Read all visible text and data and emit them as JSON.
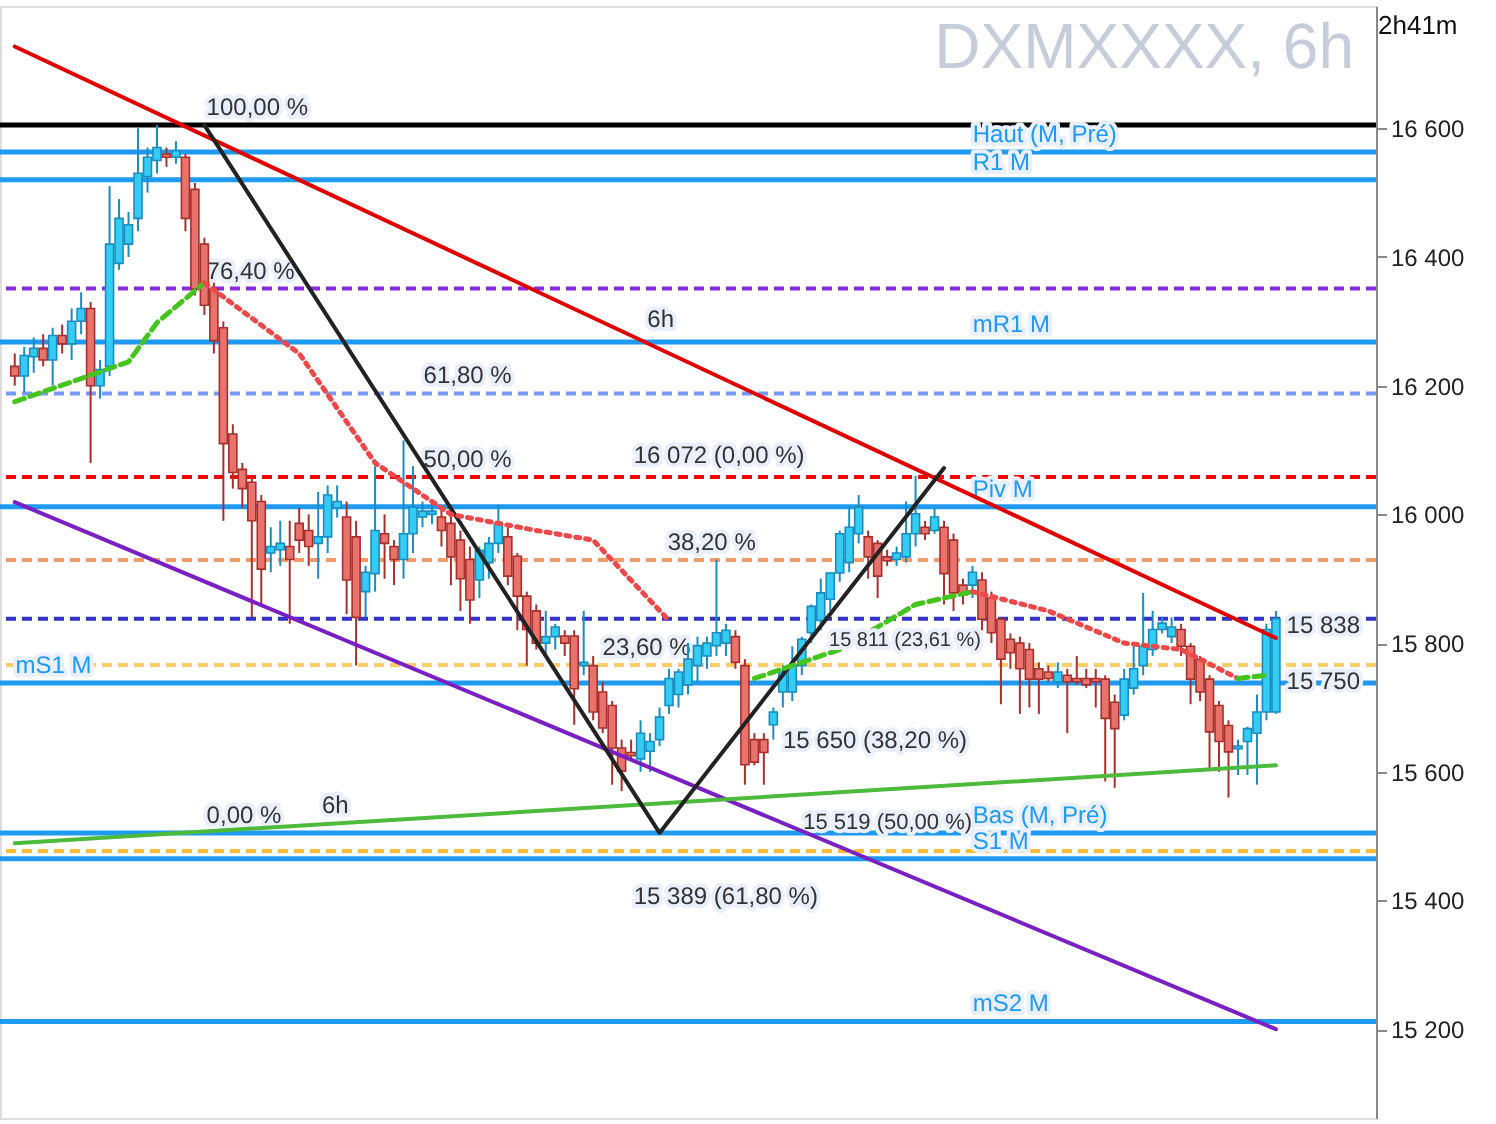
{
  "chart_data": {
    "type": "candlestick",
    "title": "DXMXXXX, 6h",
    "categories": [
      null,
      null,
      null,
      null,
      null,
      null,
      null,
      null,
      null,
      null,
      null,
      null,
      null,
      null,
      null,
      null,
      null,
      null,
      null,
      null,
      null,
      null,
      null,
      null,
      null,
      null,
      null,
      null,
      null,
      null,
      null,
      null,
      null,
      null,
      null,
      null,
      null,
      null,
      null,
      null,
      null,
      null,
      null,
      null,
      null,
      null,
      null,
      null,
      null,
      null,
      null,
      null,
      null,
      null,
      null,
      null,
      null,
      null,
      null,
      null,
      null,
      null,
      null,
      null,
      null,
      null,
      null,
      null,
      null,
      null,
      null,
      null,
      null,
      null,
      null,
      null,
      null,
      null,
      null,
      null,
      null,
      null,
      null,
      null,
      null,
      null,
      null,
      null,
      null,
      null,
      null,
      null,
      null,
      null,
      null,
      null,
      null,
      null,
      null,
      null,
      null,
      null,
      null,
      null,
      null,
      null,
      null,
      null,
      null,
      null,
      null,
      null,
      null,
      null,
      null,
      null,
      null,
      null,
      null,
      null,
      null,
      null,
      null,
      null,
      null,
      null,
      null,
      null,
      null,
      null,
      null,
      null,
      null,
      null
    ],
    "ohlc": [
      [
        16230,
        16250,
        16200,
        16215
      ],
      [
        16215,
        16260,
        16190,
        16247
      ],
      [
        16245,
        16275,
        16220,
        16258
      ],
      [
        16258,
        16280,
        16230,
        16240
      ],
      [
        16240,
        16290,
        16200,
        16278
      ],
      [
        16278,
        16295,
        16250,
        16265
      ],
      [
        16265,
        16320,
        16240,
        16300
      ],
      [
        16300,
        16345,
        16280,
        16320
      ],
      [
        16320,
        16330,
        16080,
        16200
      ],
      [
        16200,
        16240,
        16180,
        16225
      ],
      [
        16230,
        16510,
        16215,
        16420
      ],
      [
        16390,
        16490,
        16380,
        16460
      ],
      [
        16420,
        16470,
        16400,
        16450
      ],
      [
        16460,
        16600,
        16440,
        16530
      ],
      [
        16525,
        16570,
        16500,
        16555
      ],
      [
        16550,
        16605,
        16530,
        16570
      ],
      [
        16560,
        16570,
        16540,
        16555
      ],
      [
        16555,
        16580,
        16545,
        16565
      ],
      [
        16555,
        16560,
        16440,
        16460
      ],
      [
        16505,
        16515,
        16340,
        16350
      ],
      [
        16420,
        16430,
        16310,
        16325
      ],
      [
        16350,
        16360,
        16250,
        16270
      ],
      [
        16290,
        16300,
        15990,
        16110
      ],
      [
        16125,
        16140,
        16040,
        16065
      ],
      [
        16070,
        16080,
        16010,
        16040
      ],
      [
        16050,
        16060,
        15840,
        15990
      ],
      [
        16020,
        16030,
        15860,
        15915
      ],
      [
        15940,
        15980,
        15910,
        15950
      ],
      [
        15945,
        15990,
        15920,
        15955
      ],
      [
        15950,
        15990,
        15830,
        15930
      ],
      [
        15986,
        16010,
        15940,
        15960
      ],
      [
        15975,
        16000,
        15920,
        15950
      ],
      [
        15955,
        16035,
        15900,
        15965
      ],
      [
        15965,
        16045,
        15940,
        16030
      ],
      [
        16010,
        16045,
        15995,
        16020
      ],
      [
        15996,
        16020,
        15845,
        15898
      ],
      [
        15965,
        15990,
        15765,
        15840
      ],
      [
        15880,
        15920,
        15840,
        15910
      ],
      [
        15908,
        16075,
        15880,
        15975
      ],
      [
        15970,
        16000,
        15900,
        15955
      ],
      [
        15950,
        15960,
        15890,
        15930
      ],
      [
        15930,
        16115,
        15900,
        15970
      ],
      [
        15970,
        16075,
        15940,
        16011
      ],
      [
        15996,
        16020,
        15980,
        16005
      ],
      [
        16000,
        16020,
        15985,
        16005
      ],
      [
        15996,
        16010,
        15950,
        15975
      ],
      [
        15986,
        16000,
        15890,
        15934
      ],
      [
        15960,
        15975,
        15850,
        15900
      ],
      [
        15930,
        15950,
        15830,
        15867
      ],
      [
        15898,
        15950,
        15870,
        15944
      ],
      [
        15925,
        15965,
        15900,
        15955
      ],
      [
        15955,
        16015,
        15940,
        15986
      ],
      [
        15965,
        15980,
        15890,
        15904
      ],
      [
        15935,
        15940,
        15820,
        15873
      ],
      [
        15873,
        15880,
        15765,
        15821
      ],
      [
        15850,
        15860,
        15790,
        15800
      ],
      [
        15800,
        15850,
        15780,
        15810
      ],
      [
        15810,
        15830,
        15790,
        15825
      ],
      [
        15811,
        15820,
        15780,
        15800
      ],
      [
        15811,
        15820,
        15673,
        15729
      ],
      [
        15765,
        15850,
        15750,
        15770
      ],
      [
        15765,
        15780,
        15680,
        15693
      ],
      [
        15724,
        15740,
        15660,
        15668
      ],
      [
        15703,
        15710,
        15580,
        15637
      ],
      [
        15637,
        15650,
        15570,
        15601
      ],
      [
        15630,
        15650,
        15620,
        15625
      ],
      [
        15620,
        15680,
        15600,
        15660
      ],
      [
        15632,
        15660,
        15600,
        15647
      ],
      [
        15650,
        15700,
        15640,
        15685
      ],
      [
        15703,
        15760,
        15690,
        15745
      ],
      [
        15720,
        15760,
        15700,
        15755
      ],
      [
        15735,
        15800,
        15720,
        15775
      ],
      [
        15765,
        15810,
        15740,
        15796
      ],
      [
        15780,
        15810,
        15760,
        15800
      ],
      [
        15796,
        15930,
        15780,
        15816
      ],
      [
        15800,
        15830,
        15780,
        15820
      ],
      [
        15810,
        15820,
        15760,
        15770
      ],
      [
        15765,
        15775,
        15580,
        15611
      ],
      [
        15650,
        15660,
        15610,
        15615
      ],
      [
        15650,
        15660,
        15580,
        15630
      ],
      [
        15673,
        15700,
        15650,
        15693
      ],
      [
        15724,
        15765,
        15700,
        15755
      ],
      [
        15724,
        15795,
        15710,
        15765
      ],
      [
        15765,
        15810,
        15750,
        15806
      ],
      [
        15816,
        15860,
        15800,
        15857
      ],
      [
        15835,
        15900,
        15820,
        15878
      ],
      [
        15868,
        15910,
        15850,
        15909
      ],
      [
        15909,
        15975,
        15895,
        15970
      ],
      [
        15925,
        16011,
        15910,
        15980
      ],
      [
        15970,
        16030,
        15955,
        16011
      ],
      [
        15965,
        15975,
        15900,
        15934
      ],
      [
        15955,
        15960,
        15870,
        15904
      ],
      [
        15934,
        15945,
        15920,
        15928
      ],
      [
        15930,
        15950,
        15920,
        15940
      ],
      [
        15934,
        16020,
        15925,
        15970
      ],
      [
        15970,
        16060,
        15950,
        16001
      ],
      [
        15980,
        15990,
        15960,
        15970
      ],
      [
        15975,
        16010,
        15970,
        15996
      ],
      [
        15980,
        15990,
        15860,
        15908
      ],
      [
        15960,
        15970,
        15850,
        15878
      ],
      [
        15890,
        15900,
        15860,
        15875
      ],
      [
        15890,
        15920,
        15870,
        15910
      ],
      [
        15898,
        15910,
        15820,
        15837
      ],
      [
        15870,
        15880,
        15800,
        15816
      ],
      [
        15837,
        15840,
        15705,
        15775
      ],
      [
        15806,
        15815,
        15760,
        15785
      ],
      [
        15800,
        15810,
        15690,
        15760
      ],
      [
        15790,
        15800,
        15700,
        15744
      ],
      [
        15760,
        15770,
        15690,
        15744
      ],
      [
        15755,
        15765,
        15740,
        15745
      ],
      [
        15740,
        15770,
        15730,
        15755
      ],
      [
        15750,
        15760,
        15660,
        15740
      ],
      [
        15745,
        15780,
        15735,
        15740
      ],
      [
        15745,
        15760,
        15730,
        15735
      ],
      [
        15745,
        15760,
        15700,
        15740
      ],
      [
        15744,
        15750,
        15585,
        15683
      ],
      [
        15708,
        15720,
        15575,
        15667
      ],
      [
        15688,
        15760,
        15680,
        15744
      ],
      [
        15730,
        15800,
        15720,
        15760
      ],
      [
        15765,
        15878,
        15750,
        15795
      ],
      [
        15790,
        15850,
        15780,
        15821
      ],
      [
        15821,
        15840,
        15815,
        15831
      ],
      [
        15810,
        15840,
        15800,
        15825
      ],
      [
        15821,
        15830,
        15780,
        15795
      ],
      [
        15795,
        15800,
        15705,
        15744
      ],
      [
        15775,
        15780,
        15710,
        15724
      ],
      [
        15744,
        15750,
        15605,
        15662
      ],
      [
        15703,
        15710,
        15600,
        15647
      ],
      [
        15672,
        15680,
        15560,
        15631
      ],
      [
        15636,
        15650,
        15595,
        15640
      ],
      [
        15647,
        15670,
        15595,
        15667
      ],
      [
        15660,
        15720,
        15580,
        15693
      ],
      [
        15693,
        15830,
        15680,
        15821
      ],
      [
        15693,
        15850,
        15690,
        15838
      ]
    ],
    "series": [
      {
        "type": "line",
        "color": "#e00000",
        "line_style": "solid",
        "values": [
          16727,
          null,
          null,
          null,
          null,
          null,
          null,
          null,
          null,
          null,
          null,
          null,
          null,
          null,
          null,
          null,
          null,
          null,
          null,
          null,
          null,
          null,
          null,
          null,
          null,
          null,
          null,
          null,
          null,
          null,
          null,
          null,
          null,
          null,
          null,
          null,
          null,
          null,
          null,
          null,
          null,
          null,
          null,
          null,
          null,
          null,
          null,
          null,
          null,
          null,
          null,
          null,
          null,
          null,
          null,
          null,
          null,
          null,
          null,
          null,
          null,
          null,
          null,
          null,
          null,
          null,
          null,
          null,
          null,
          null,
          null,
          null,
          null,
          null,
          null,
          null,
          null,
          null,
          null,
          null,
          null,
          null,
          null,
          null,
          null,
          null,
          null,
          null,
          null,
          null,
          null,
          null,
          null,
          null,
          null,
          null,
          null,
          null,
          null,
          null,
          null,
          null,
          null,
          null,
          null,
          null,
          null,
          null,
          null,
          null,
          null,
          null,
          null,
          null,
          null,
          null,
          null,
          null,
          null,
          null,
          null,
          null,
          null,
          null,
          null,
          null,
          null,
          null,
          null,
          null,
          null,
          null,
          null,
          15808
        ]
      },
      {
        "type": "line",
        "color": "#7a1fc2",
        "line_style": "solid",
        "values": [
          16019,
          null,
          null,
          null,
          null,
          null,
          null,
          null,
          null,
          null,
          null,
          null,
          null,
          null,
          null,
          null,
          null,
          null,
          null,
          null,
          null,
          null,
          null,
          null,
          null,
          null,
          null,
          null,
          null,
          null,
          null,
          null,
          null,
          null,
          null,
          null,
          null,
          null,
          null,
          null,
          null,
          null,
          null,
          null,
          null,
          null,
          null,
          null,
          null,
          null,
          null,
          null,
          null,
          null,
          null,
          null,
          null,
          null,
          null,
          null,
          null,
          null,
          null,
          null,
          null,
          null,
          null,
          null,
          null,
          null,
          null,
          null,
          null,
          null,
          null,
          null,
          null,
          null,
          null,
          null,
          null,
          null,
          null,
          null,
          null,
          null,
          null,
          null,
          null,
          null,
          null,
          null,
          null,
          null,
          null,
          null,
          null,
          null,
          null,
          null,
          null,
          null,
          null,
          null,
          null,
          null,
          null,
          null,
          null,
          null,
          null,
          null,
          null,
          null,
          null,
          null,
          null,
          null,
          null,
          null,
          null,
          null,
          null,
          null,
          null,
          null,
          null,
          null,
          null,
          null,
          null,
          null,
          null,
          15200
        ]
      },
      {
        "type": "line",
        "color": "#4cbb3c",
        "line_style": "solid",
        "values": [
          15489,
          null,
          null,
          null,
          null,
          null,
          null,
          null,
          null,
          null,
          null,
          null,
          null,
          null,
          null,
          null,
          null,
          null,
          null,
          null,
          null,
          null,
          null,
          null,
          null,
          null,
          null,
          null,
          null,
          null,
          null,
          null,
          null,
          null,
          null,
          null,
          null,
          null,
          null,
          null,
          null,
          null,
          null,
          null,
          null,
          null,
          null,
          null,
          null,
          null,
          null,
          null,
          null,
          null,
          null,
          null,
          null,
          null,
          null,
          null,
          null,
          null,
          null,
          null,
          null,
          null,
          null,
          null,
          null,
          null,
          null,
          null,
          null,
          null,
          null,
          null,
          null,
          null,
          null,
          null,
          null,
          null,
          null,
          null,
          null,
          null,
          null,
          null,
          null,
          null,
          null,
          null,
          null,
          null,
          null,
          null,
          null,
          null,
          null,
          null,
          null,
          null,
          null,
          null,
          null,
          null,
          null,
          null,
          null,
          null,
          null,
          null,
          null,
          null,
          null,
          null,
          null,
          null,
          null,
          null,
          null,
          null,
          null,
          null,
          null,
          null,
          null,
          null,
          null,
          null,
          null,
          null,
          null,
          15610
        ]
      },
      {
        "type": "line",
        "color": "#222222",
        "line_style": "solid",
        "values": [
          null,
          null,
          null,
          null,
          null,
          null,
          null,
          null,
          null,
          null,
          null,
          null,
          null,
          null,
          null,
          null,
          null,
          null,
          null,
          null,
          16605,
          null,
          null,
          null,
          null,
          null,
          null,
          null,
          null,
          null,
          null,
          null,
          null,
          null,
          null,
          null,
          null,
          null,
          null,
          null,
          null,
          null,
          null,
          null,
          null,
          null,
          null,
          null,
          null,
          null,
          null,
          null,
          null,
          null,
          null,
          null,
          null,
          null,
          null,
          null,
          null,
          null,
          null,
          null,
          null,
          null,
          null,
          null,
          15505,
          null,
          null,
          null,
          null,
          null,
          null,
          null,
          null,
          null,
          null,
          null,
          null,
          null,
          null,
          null,
          null,
          null,
          null,
          null,
          null,
          null,
          null,
          null,
          null,
          null,
          null,
          null,
          null,
          null,
          16072,
          null,
          null,
          null,
          null,
          null,
          null,
          null,
          null,
          null,
          null,
          null,
          null,
          null,
          null,
          null,
          null,
          null,
          null,
          null,
          null,
          null,
          null,
          null,
          null,
          null,
          null,
          null,
          null,
          null,
          null,
          null,
          null,
          null,
          null,
          null
        ]
      },
      {
        "type": "line",
        "color": "#44c41c",
        "line_style": "dashed",
        "values": [
          16175,
          null,
          null,
          null,
          null,
          null,
          null,
          null,
          null,
          null,
          null,
          null,
          16237,
          null,
          null,
          16298,
          null,
          null,
          null,
          null,
          16360,
          null,
          null,
          null,
          null,
          null,
          null,
          null,
          null,
          null,
          null,
          null,
          null,
          null,
          null,
          null,
          null,
          null,
          null,
          null,
          null,
          null,
          null,
          null,
          null,
          null,
          null,
          null,
          null,
          null,
          null,
          null,
          null,
          null,
          null,
          null,
          null,
          null,
          null,
          null,
          null,
          null,
          null,
          null,
          null,
          null,
          null,
          null,
          null,
          null,
          null,
          null,
          null,
          null,
          null,
          null,
          null,
          null,
          null,
          null,
          null,
          null,
          null,
          null,
          null,
          null,
          null,
          null,
          null,
          null,
          null,
          null,
          null,
          null,
          null,
          null,
          null,
          null,
          null,
          null,
          null,
          null,
          null,
          null,
          null,
          null,
          null,
          null,
          null,
          null,
          null,
          null,
          null,
          null,
          null,
          null,
          null,
          null,
          null,
          null,
          null,
          null,
          null,
          null,
          null,
          null,
          null,
          null,
          null,
          null,
          null,
          null,
          null,
          null
        ]
      },
      {
        "type": "line",
        "color": "#f04848",
        "line_style": "dotted",
        "values": [
          null,
          null,
          null,
          null,
          null,
          null,
          null,
          null,
          null,
          null,
          null,
          null,
          null,
          null,
          null,
          null,
          null,
          null,
          null,
          null,
          16360,
          null,
          null,
          null,
          null,
          null,
          null,
          null,
          null,
          null,
          16250,
          null,
          null,
          null,
          null,
          null,
          null,
          null,
          16080,
          null,
          null,
          null,
          null,
          null,
          null,
          null,
          16000,
          null,
          null,
          null,
          null,
          null,
          null,
          null,
          null,
          15975,
          null,
          null,
          null,
          null,
          null,
          15960,
          null,
          null,
          null,
          null,
          null,
          null,
          null,
          15835,
          null,
          null,
          null,
          null,
          null,
          null,
          null,
          null,
          null,
          null,
          null,
          null,
          null,
          null,
          null,
          null,
          null,
          null,
          null,
          null,
          null,
          null,
          null,
          null,
          null,
          null,
          null,
          null,
          null,
          null,
          null,
          null,
          null,
          null,
          null,
          null,
          null,
          null,
          null,
          null,
          null,
          null,
          null,
          null,
          null,
          null,
          null,
          null,
          null,
          null,
          null,
          null,
          null,
          null,
          null,
          null,
          null,
          null,
          null,
          null,
          null,
          null,
          null,
          null
        ]
      },
      {
        "type": "line",
        "color": "#44c41c",
        "line_style": "dashed",
        "values": [
          null,
          null,
          null,
          null,
          null,
          null,
          null,
          null,
          null,
          null,
          null,
          null,
          null,
          null,
          null,
          null,
          null,
          null,
          null,
          null,
          null,
          null,
          null,
          null,
          null,
          null,
          null,
          null,
          null,
          null,
          null,
          null,
          null,
          null,
          null,
          null,
          null,
          null,
          null,
          null,
          null,
          null,
          null,
          null,
          null,
          null,
          null,
          null,
          null,
          null,
          null,
          null,
          null,
          null,
          null,
          null,
          null,
          null,
          null,
          null,
          null,
          null,
          null,
          null,
          null,
          null,
          null,
          null,
          null,
          null,
          null,
          null,
          null,
          null,
          null,
          null,
          null,
          null,
          15745,
          null,
          null,
          null,
          null,
          null,
          null,
          null,
          null,
          15790,
          null,
          null,
          null,
          null,
          null,
          null,
          null,
          15860,
          null,
          null,
          null,
          null,
          null,
          15880,
          null,
          null,
          null,
          null,
          null,
          null,
          null,
          null,
          null,
          null,
          null,
          null,
          null,
          null,
          null,
          null,
          null,
          null,
          null,
          null,
          null,
          null,
          null,
          null,
          null,
          null,
          null,
          null,
          null,
          null,
          null,
          null
        ]
      },
      {
        "type": "line",
        "color": "#f04848",
        "line_style": "dotted",
        "values": [
          null,
          null,
          null,
          null,
          null,
          null,
          null,
          null,
          null,
          null,
          null,
          null,
          null,
          null,
          null,
          null,
          null,
          null,
          null,
          null,
          null,
          null,
          null,
          null,
          null,
          null,
          null,
          null,
          null,
          null,
          null,
          null,
          null,
          null,
          null,
          null,
          null,
          null,
          null,
          null,
          null,
          null,
          null,
          null,
          null,
          null,
          null,
          null,
          null,
          null,
          null,
          null,
          null,
          null,
          null,
          null,
          null,
          null,
          null,
          null,
          null,
          null,
          null,
          null,
          null,
          null,
          null,
          null,
          null,
          null,
          null,
          null,
          null,
          null,
          null,
          null,
          null,
          null,
          null,
          null,
          null,
          null,
          null,
          null,
          null,
          null,
          null,
          null,
          null,
          null,
          null,
          null,
          null,
          null,
          null,
          null,
          null,
          null,
          null,
          null,
          null,
          15880,
          null,
          null,
          null,
          null,
          null,
          null,
          null,
          15850,
          null,
          null,
          null,
          null,
          null,
          null,
          null,
          15800,
          null,
          null,
          null,
          null,
          null,
          15790,
          null,
          null,
          null,
          null,
          null,
          15745,
          null,
          null,
          null,
          null
        ]
      },
      {
        "type": "line",
        "color": "#44c41c",
        "line_style": "dashed",
        "values": [
          null,
          null,
          null,
          null,
          null,
          null,
          null,
          null,
          null,
          null,
          null,
          null,
          null,
          null,
          null,
          null,
          null,
          null,
          null,
          null,
          null,
          null,
          null,
          null,
          null,
          null,
          null,
          null,
          null,
          null,
          null,
          null,
          null,
          null,
          null,
          null,
          null,
          null,
          null,
          null,
          null,
          null,
          null,
          null,
          null,
          null,
          null,
          null,
          null,
          null,
          null,
          null,
          null,
          null,
          null,
          null,
          null,
          null,
          null,
          null,
          null,
          null,
          null,
          null,
          null,
          null,
          null,
          null,
          null,
          null,
          null,
          null,
          null,
          null,
          null,
          null,
          null,
          null,
          null,
          null,
          null,
          null,
          null,
          null,
          null,
          null,
          null,
          null,
          null,
          null,
          null,
          null,
          null,
          null,
          null,
          null,
          null,
          null,
          null,
          null,
          null,
          null,
          null,
          null,
          null,
          null,
          null,
          null,
          null,
          null,
          null,
          null,
          null,
          null,
          null,
          null,
          null,
          null,
          null,
          null,
          null,
          null,
          null,
          null,
          null,
          null,
          null,
          null,
          null,
          15745,
          null,
          null,
          15750,
          null
        ]
      }
    ],
    "ref_lines": [
      {
        "axis": "y",
        "value": 16605,
        "color": "#000000",
        "line_style": "solid"
      },
      {
        "axis": "y",
        "value": 16563,
        "label": "Haut (M, Pré)",
        "color": "#1e9af0",
        "line_style": "solid"
      },
      {
        "axis": "y",
        "value": 16520,
        "label": "R1 M",
        "color": "#1e9af0",
        "line_style": "solid"
      },
      {
        "axis": "y",
        "value": 16351,
        "color": "#8a2be2",
        "line_style": "dashed"
      },
      {
        "axis": "y",
        "value": 16268,
        "label": "mR1 M",
        "color": "#1e9af0",
        "line_style": "solid"
      },
      {
        "axis": "y",
        "value": 16188,
        "color": "#7799ff",
        "line_style": "dashed"
      },
      {
        "axis": "y",
        "value": 16058,
        "color": "#ff0000",
        "line_style": "dashed"
      },
      {
        "axis": "y",
        "value": 16012,
        "label": "Piv M",
        "color": "#1e9af0",
        "line_style": "solid"
      },
      {
        "axis": "y",
        "value": 15929,
        "color": "#ff9966",
        "line_style": "dashed"
      },
      {
        "axis": "y",
        "value": 15838,
        "color": "#3333cc",
        "line_style": "dashed"
      },
      {
        "axis": "y",
        "value": 15766,
        "color": "#ffcc66",
        "line_style": "dashed"
      },
      {
        "axis": "y",
        "value": 15738,
        "label": "mS1 M",
        "color": "#1e9af0",
        "line_style": "solid"
      },
      {
        "axis": "y",
        "value": 15505,
        "label": "Bas (M, Pré)",
        "color": "#1e9af0",
        "line_style": "solid"
      },
      {
        "axis": "y",
        "value": 15477,
        "color": "#ffbb33",
        "line_style": "dashed"
      },
      {
        "axis": "y",
        "value": 15465,
        "label": "S1 M",
        "color": "#1e9af0",
        "line_style": "solid"
      },
      {
        "axis": "y",
        "value": 15212,
        "label": "mS2 M",
        "color": "#1e9af0",
        "line_style": "solid"
      }
    ],
    "annotations": [
      {
        "text": "100,00 %",
        "y": 16605
      },
      {
        "text": "76,40 %",
        "y": 16351
      },
      {
        "text": "61,80 %",
        "y": 16188
      },
      {
        "text": "50,00 %",
        "y": 16058
      },
      {
        "text": "38,20 %",
        "y": 15929
      },
      {
        "text": "23,60 %",
        "y": 15766
      },
      {
        "text": "0,00 %",
        "y": 15505
      },
      "16 072 (0,00 %)",
      "15 811 (23,61 %)",
      "15 650 (38,20 %)",
      "15 519 (50,00 %)",
      "15 389 (61,80 %)",
      {
        "text": "6h",
        "y": 16275
      },
      {
        "text": "6h",
        "y": 15520
      },
      "15 838",
      "15 750",
      "2h41m"
    ],
    "ylim": [
      15062,
      16790
    ],
    "yticks": [
      {
        "value": 15200,
        "label": "15 200"
      },
      {
        "value": 15400,
        "label": "15 400"
      },
      {
        "value": 15600,
        "label": "15 600"
      },
      {
        "value": 15800,
        "label": "15 800"
      },
      {
        "value": 16000,
        "label": "16 000"
      },
      {
        "value": 16200,
        "label": "16 200"
      },
      {
        "value": 16400,
        "label": "16 400"
      },
      {
        "value": 16600,
        "label": "16 600"
      }
    ],
    "tick_labels": "y"
  }
}
